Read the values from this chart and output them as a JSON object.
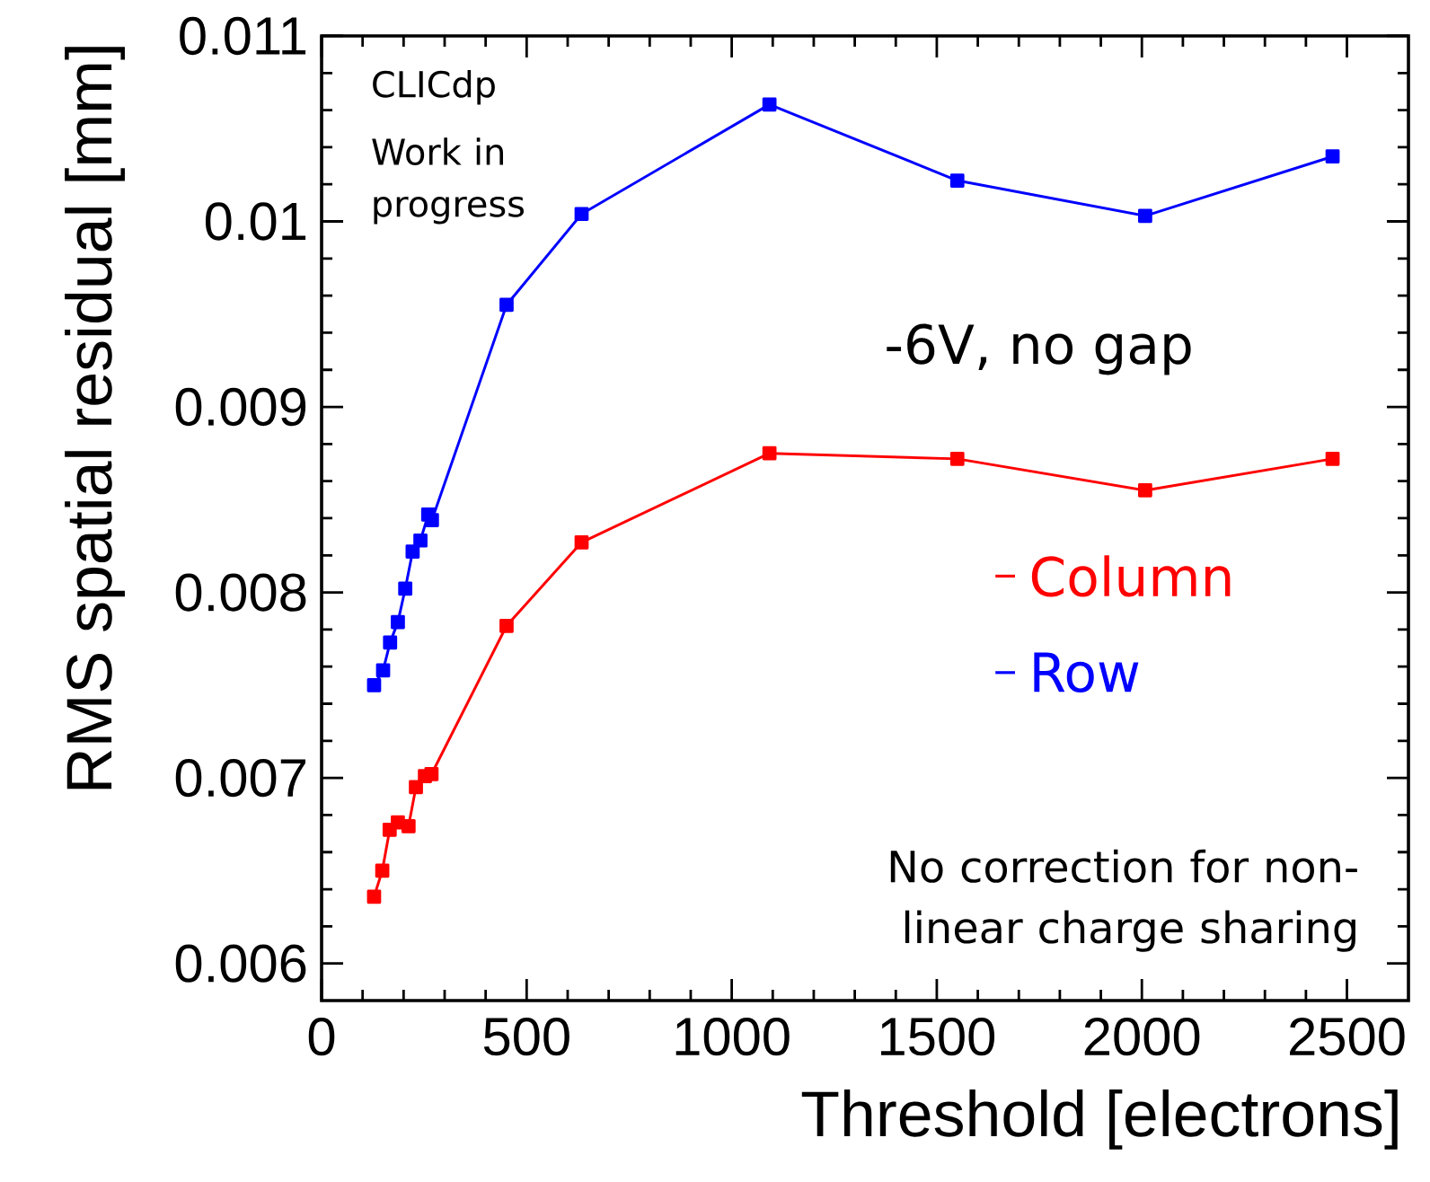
{
  "chart_data": {
    "type": "line",
    "xlabel": "Threshold [electrons]",
    "ylabel": "RMS spatial residual [mm]",
    "xlim": [
      0,
      2650
    ],
    "xticks": [
      0,
      500,
      1000,
      1500,
      2000,
      2500
    ],
    "ylim": [
      0.0058,
      0.011
    ],
    "yticks": [
      0.006,
      0.007,
      0.008,
      0.009,
      0.01,
      0.011
    ],
    "marker": "square",
    "legend": "right",
    "grid": false,
    "annotations": [
      "CLICdp",
      "Work in progress",
      "-6V, no gap",
      "No correction for non-linear charge sharing"
    ],
    "series": [
      {
        "name": "Column",
        "color": "#ff0000",
        "x": [
          128,
          148,
          166,
          186,
          212,
          230,
          252,
          268,
          451,
          634,
          1092,
          1550,
          2008,
          2465
        ],
        "values": [
          0.00636,
          0.0065,
          0.00672,
          0.00676,
          0.00674,
          0.00695,
          0.00701,
          0.00702,
          0.00782,
          0.00827,
          0.00875,
          0.00872,
          0.00855,
          0.00872
        ]
      },
      {
        "name": "Row",
        "color": "#0000ff",
        "x": [
          128,
          150,
          167,
          186,
          204,
          222,
          241,
          260,
          269,
          451,
          634,
          1092,
          1550,
          2008,
          2465
        ],
        "values": [
          0.0075,
          0.00758,
          0.00773,
          0.00784,
          0.00802,
          0.00822,
          0.00828,
          0.00842,
          0.00839,
          0.00955,
          0.01004,
          0.01063,
          0.01022,
          0.01003,
          0.01035
        ]
      }
    ]
  }
}
